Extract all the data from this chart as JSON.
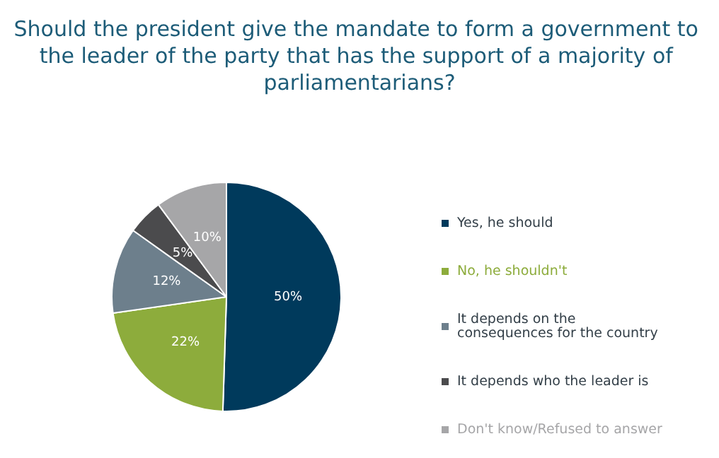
{
  "chart_data": {
    "type": "pie",
    "title": "Should the president give the mandate to form a government to the leader of the party that has the support of a majority of parliamentarians?",
    "categories": [
      "Yes, he should",
      "No, he shouldn't",
      "It depends on the consequences for the country",
      "It depends who the leader is",
      "Don't know/Refused to answer"
    ],
    "values": [
      50,
      22,
      12,
      5,
      10
    ],
    "value_labels": [
      "50%",
      "22%",
      "12%",
      "5%",
      "10%"
    ],
    "colors": [
      "#003a5c",
      "#8dac3c",
      "#6d7f8c",
      "#4b4b4d",
      "#a6a6a8"
    ],
    "legend": "right"
  }
}
